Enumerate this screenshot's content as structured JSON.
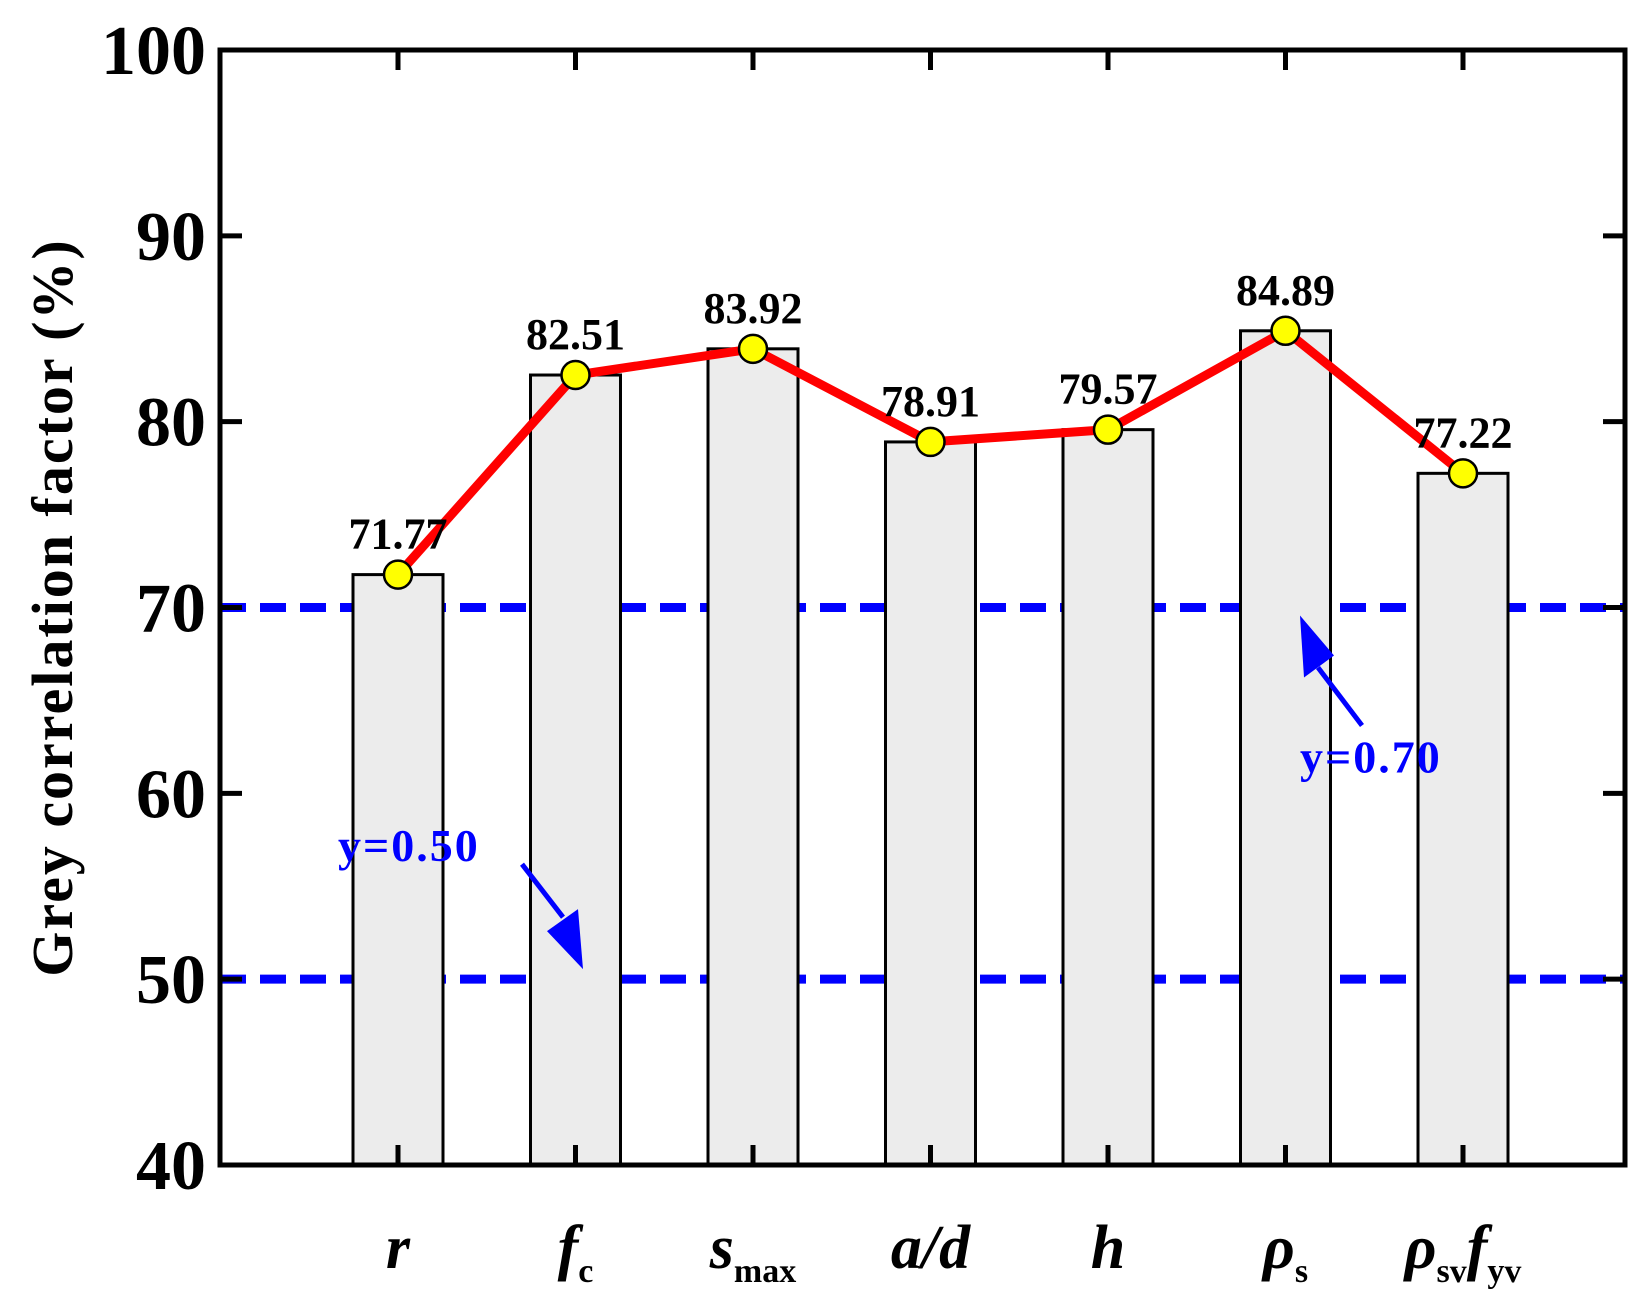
{
  "chart_data": {
    "type": "bar",
    "categories": [
      {
        "main": "r",
        "sub": ""
      },
      {
        "main": "f",
        "sub": "c"
      },
      {
        "main": "s",
        "sub": "max"
      },
      {
        "main": "a/d",
        "sub": ""
      },
      {
        "main": "h",
        "sub": ""
      },
      {
        "main": "ρ",
        "sub": "s"
      },
      {
        "main": "ρ",
        "sub": "sv",
        "main2": "f",
        "sub2": "yv"
      }
    ],
    "values": [
      71.77,
      82.51,
      83.92,
      78.91,
      79.57,
      84.89,
      77.22
    ],
    "value_labels": [
      "71.77",
      "82.51",
      "83.92",
      "78.91",
      "79.57",
      "84.89",
      "77.22"
    ],
    "ylabel": "Grey correlation factor (%)",
    "xlabel": "",
    "ylim": [
      40,
      100
    ],
    "yticks": [
      40,
      50,
      60,
      70,
      80,
      90,
      100
    ],
    "grid": false,
    "overlay_line": true,
    "reference_lines": [
      {
        "y": 70,
        "label": "y=0.70"
      },
      {
        "y": 50,
        "label": "y=0.50"
      }
    ],
    "colors": {
      "bar_fill": "#ececec",
      "bar_stroke": "#000000",
      "line": "#ff0000",
      "marker_fill": "#ffff00",
      "marker_stroke": "#000000",
      "reference": "#0000ff"
    }
  }
}
